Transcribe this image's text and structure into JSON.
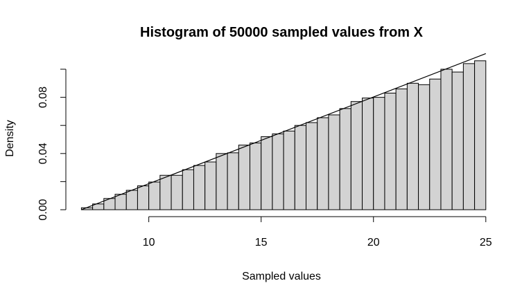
{
  "chart_data": {
    "type": "bar",
    "title": "Histogram of 50000 sampled values from X",
    "xlabel": "Sampled values",
    "ylabel": "Density",
    "xlim": [
      6,
      25.5
    ],
    "ylim": [
      0,
      0.1
    ],
    "x_ticks": [
      10,
      15,
      20,
      25
    ],
    "y_ticks": [
      0.0,
      0.04,
      0.08
    ],
    "y_tick_labels": [
      "0.00",
      "0.04",
      "0.08"
    ],
    "grid": false,
    "bar_fill": "#d3d3d3",
    "bar_edges": [
      7,
      7.5,
      8,
      8.5,
      9,
      9.5,
      10,
      10.5,
      11,
      11.5,
      12,
      12.5,
      13,
      13.5,
      14,
      14.5,
      15,
      15.5,
      16,
      16.5,
      17,
      17.5,
      18,
      18.5,
      19,
      19.5,
      20,
      20.5,
      21,
      21.5,
      22,
      22.5,
      23,
      23.5,
      24,
      24.5,
      25
    ],
    "values": [
      0.0014,
      0.0041,
      0.008,
      0.011,
      0.0138,
      0.017,
      0.0197,
      0.0245,
      0.0245,
      0.0285,
      0.0315,
      0.034,
      0.04,
      0.0405,
      0.046,
      0.0475,
      0.052,
      0.054,
      0.056,
      0.06,
      0.062,
      0.0655,
      0.0675,
      0.072,
      0.077,
      0.0795,
      0.08,
      0.083,
      0.086,
      0.09,
      0.089,
      0.093,
      0.1,
      0.098,
      0.104,
      0.106,
      0.11
    ],
    "density_line": {
      "x": [
        7,
        25
      ],
      "y": [
        0,
        0.1111
      ]
    }
  }
}
